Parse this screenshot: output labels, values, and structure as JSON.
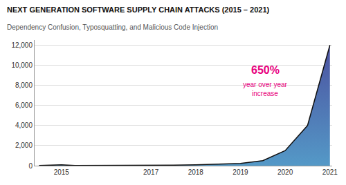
{
  "chart_data": {
    "type": "area",
    "title": "NEXT GENERATION SOFTWARE SUPPLY CHAIN ATTACKS (2015 – 2021)",
    "subtitle": "Dependency Confusion, Typosquatting, and Malicious Code Injection",
    "x": [
      2014.5,
      2015.0,
      2015.3,
      2016.0,
      2016.5,
      2017.0,
      2017.5,
      2018.0,
      2018.5,
      2019.0,
      2019.5,
      2020.0,
      2020.5,
      2021.0
    ],
    "series": [
      {
        "values": [
          10,
          78,
          10,
          10,
          20,
          30,
          50,
          80,
          130,
          230,
          500,
          1500,
          4000,
          12000
        ],
        "color": "#111111",
        "colors": [
          "#5499c7",
          "#4b4e9e"
        ]
      }
    ],
    "xlim": [
      2014.4,
      2021.05
    ],
    "ylim": [
      0,
      12500
    ],
    "xticks": [
      2015,
      2017,
      2018,
      2019,
      2020,
      2021
    ],
    "yticks": [
      0,
      {
        "value": 2000,
        "label": "2,000"
      },
      {
        "value": 4000,
        "label": "4,000"
      },
      {
        "value": 6000,
        "label": "6,000"
      },
      {
        "value": 8000,
        "label": "8,000"
      },
      {
        "value": 10000,
        "label": "10,000"
      },
      {
        "value": 12000,
        "label": "12,000"
      }
    ],
    "grid": "y",
    "annotations": [
      {
        "text": "650%",
        "x": 2019.55,
        "y": 8800,
        "color": "#e8007e"
      },
      {
        "text": "year over year\nincrease",
        "x": 2019.55,
        "y": 8800,
        "color": "#e8007e"
      }
    ]
  }
}
